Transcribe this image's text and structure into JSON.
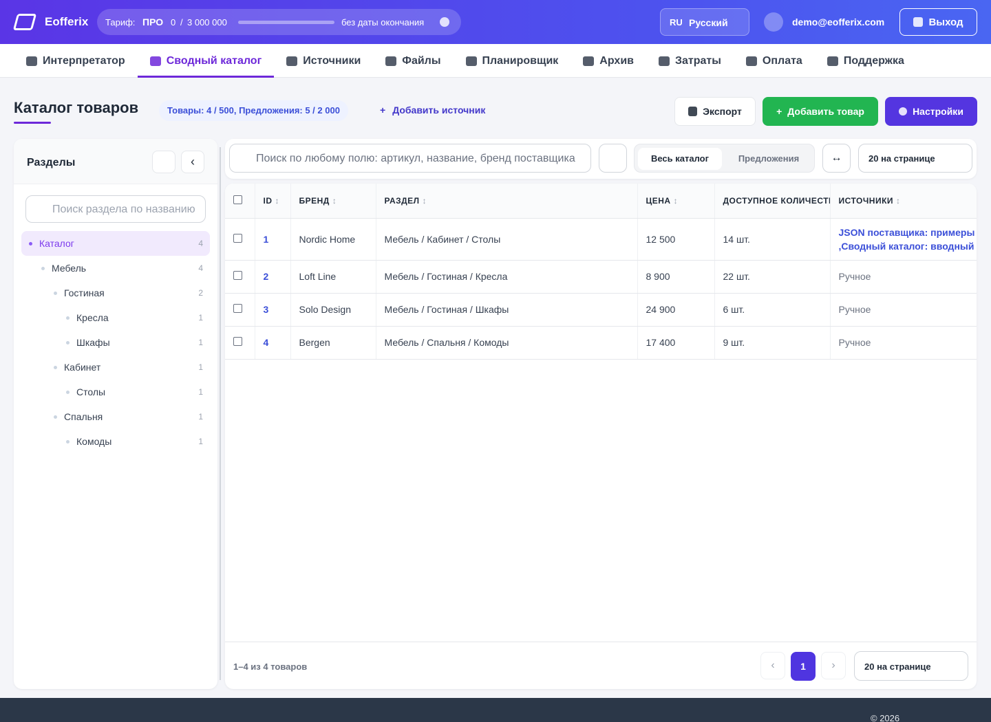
{
  "header": {
    "logo": "Eofferix",
    "tariff_label": "Тариф:",
    "tariff_name": "ПРО",
    "usage_used": "0",
    "usage_sep": "/",
    "usage_limit": "3 000 000",
    "expiry": "без даты окончания",
    "lang_code": "RU",
    "lang_name": "Русский",
    "email": "demo@eofferix.com",
    "logout": "Выход"
  },
  "nav": [
    {
      "label": "Интерпретатор",
      "active": false
    },
    {
      "label": "Сводный каталог",
      "active": true
    },
    {
      "label": "Источники",
      "active": false
    },
    {
      "label": "Файлы",
      "active": false
    },
    {
      "label": "Планировщик",
      "active": false
    },
    {
      "label": "Архив",
      "active": false
    },
    {
      "label": "Затраты",
      "active": false
    },
    {
      "label": "Оплата",
      "active": false
    },
    {
      "label": "Поддержка",
      "active": false
    }
  ],
  "page": {
    "title": "Каталог товаров",
    "badge": "Товары: 4 / 500, Предложения: 5 / 2 000",
    "add_source": "Добавить источник",
    "buttons": [
      "Экспорт",
      "Добавить товар",
      "Настройки"
    ]
  },
  "sidebar": {
    "title": "Разделы",
    "search_placeholder": "Поиск раздела по названию",
    "tree": [
      {
        "label": "Каталог",
        "count": 4,
        "active": true,
        "children": [
          {
            "label": "Мебель",
            "count": 4,
            "children": [
              {
                "label": "Гостиная",
                "count": 2,
                "children": [
                  {
                    "label": "Кресла",
                    "count": 1
                  },
                  {
                    "label": "Шкафы",
                    "count": 1
                  }
                ]
              },
              {
                "label": "Кабинет",
                "count": 1,
                "children": [
                  {
                    "label": "Столы",
                    "count": 1
                  }
                ]
              },
              {
                "label": "Спальня",
                "count": 1,
                "children": [
                  {
                    "label": "Комоды",
                    "count": 1
                  }
                ]
              }
            ]
          }
        ]
      }
    ]
  },
  "toolbar": {
    "search_placeholder": "Поиск по любому полю: артикул, название, бренд поставщика",
    "tabs": [
      "Весь каталог",
      "Предложения"
    ],
    "per_page": "20 на странице"
  },
  "table": {
    "columns": [
      "ID",
      "БРЕНД",
      "РАЗДЕЛ",
      "ЦЕНА",
      "ДОСТУПНОЕ КОЛИЧЕСТВО",
      "ИСТОЧНИКИ"
    ],
    "rows": [
      {
        "id": 1,
        "brand": "Nordic Home",
        "section": "Мебель / Кабинет / Столы",
        "price": "12 500",
        "stock": "14 шт.",
        "sources": [
          "JSON поставщика: примеры",
          ",Сводный каталог: вводный"
        ]
      },
      {
        "id": 2,
        "brand": "Loft Line",
        "section": "Мебель / Гостиная / Кресла",
        "price": "8 900",
        "stock": "22 шт.",
        "sources": [
          "Ручное"
        ]
      },
      {
        "id": 3,
        "brand": "Solo Design",
        "section": "Мебель / Гостиная / Шкафы",
        "price": "24 900",
        "stock": "6 шт.",
        "sources": [
          "Ручное"
        ]
      },
      {
        "id": 4,
        "brand": "Bergen",
        "section": "Мебель / Спальня / Комоды",
        "price": "17 400",
        "stock": "9 шт.",
        "sources": [
          "Ручное"
        ]
      }
    ]
  },
  "pager": {
    "range": "1–4 из 4 товаров",
    "prev": "‹",
    "page": 1,
    "next": "›",
    "per_page": "20 на странице"
  },
  "copyright": "© 2026"
}
